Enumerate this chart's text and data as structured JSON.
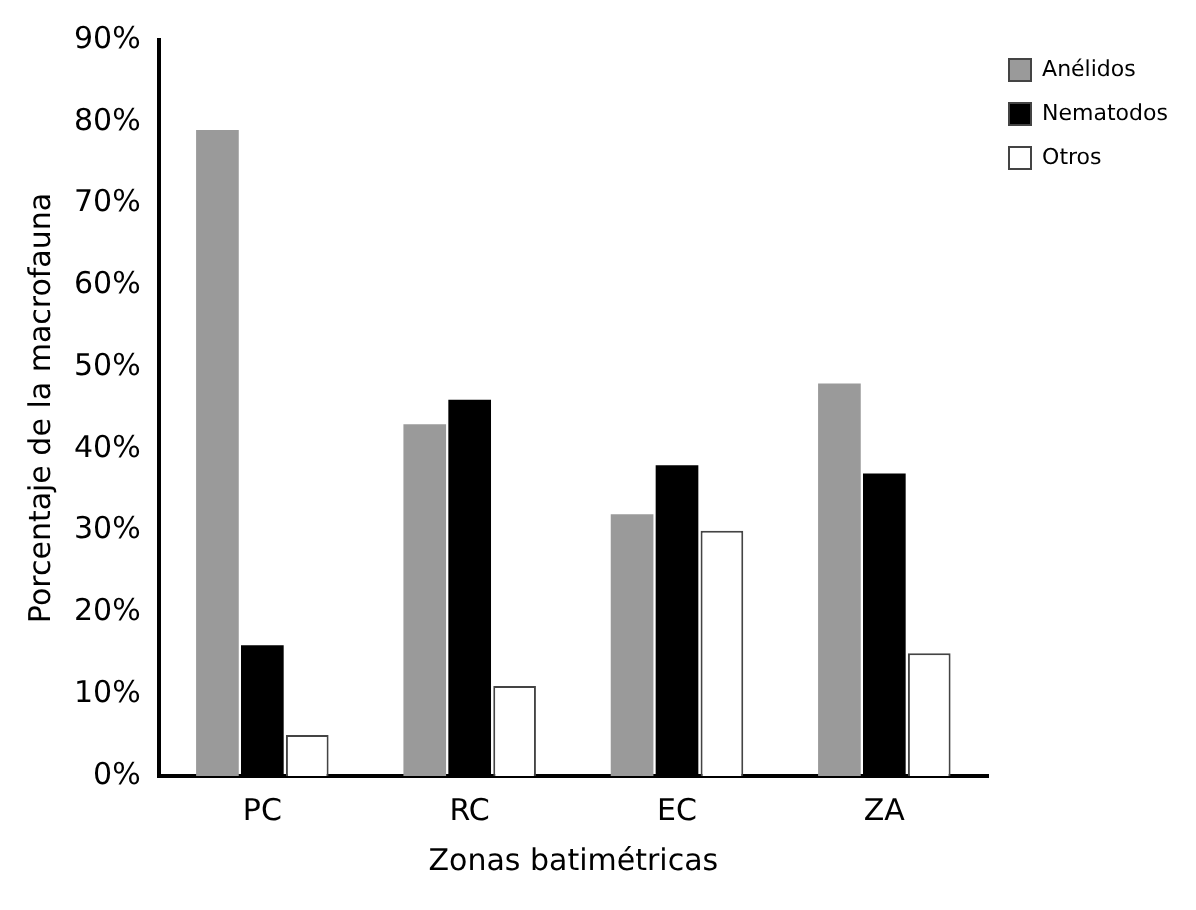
{
  "chart_data": {
    "type": "bar",
    "xlabel": "Zonas batimétricas",
    "ylabel": "Porcentaje de la macrofauna",
    "categories": [
      "PC",
      "RC",
      "EC",
      "ZA"
    ],
    "series": [
      {
        "name": "Anélidos",
        "color": "#9a9a9a",
        "values": [
          79,
          43,
          32,
          48
        ]
      },
      {
        "name": "Nematodos",
        "color": "#000000",
        "values": [
          16,
          46,
          38,
          37
        ]
      },
      {
        "name": "Otros",
        "color": "#ffffff",
        "values": [
          5,
          11,
          30,
          15
        ]
      }
    ],
    "ylim": [
      0,
      90
    ],
    "yticks": [
      {
        "value": 0,
        "label": "0%"
      },
      {
        "value": 10,
        "label": "10%"
      },
      {
        "value": 20,
        "label": "20%"
      },
      {
        "value": 30,
        "label": "30%"
      },
      {
        "value": 40,
        "label": "40%"
      },
      {
        "value": 50,
        "label": "50%"
      },
      {
        "value": 60,
        "label": "60%"
      },
      {
        "value": 70,
        "label": "70%"
      },
      {
        "value": 80,
        "label": "80%"
      },
      {
        "value": 90,
        "label": "90%"
      }
    ],
    "grid": false,
    "legend": "top right"
  }
}
